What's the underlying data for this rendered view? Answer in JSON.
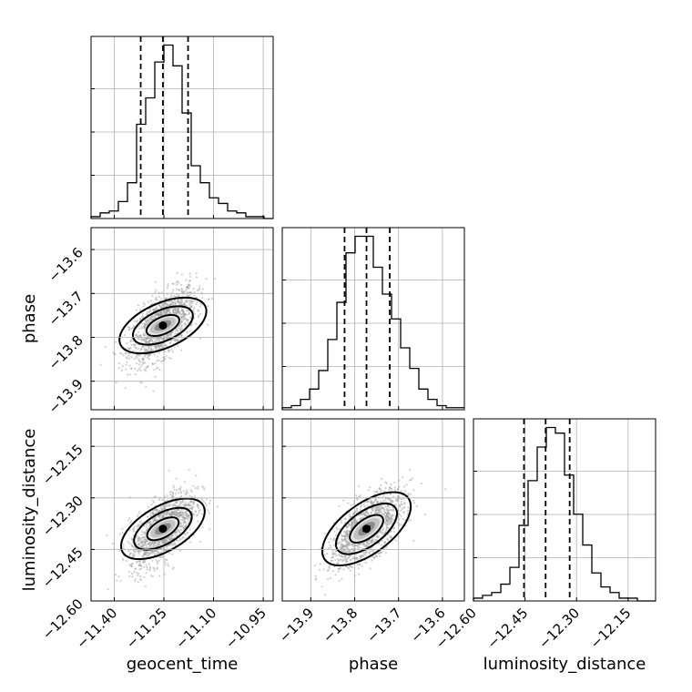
{
  "chart_data": {
    "type": "corner",
    "parameters": [
      {
        "name": "geocent_time",
        "range": [
          -11.47,
          -10.92
        ],
        "ticks": [
          -11.4,
          -11.25,
          -11.1,
          -10.95
        ],
        "tick_labels": [
          "−11.40",
          "−11.25",
          "−11.10",
          "−10.95"
        ],
        "quantiles": [
          -11.32,
          -11.253,
          -11.177
        ],
        "mean": -11.253,
        "sd": 0.05,
        "hist_values": [
          1,
          3,
          4,
          9,
          19,
          50,
          64,
          83,
          92,
          81,
          56,
          28,
          19,
          11,
          8,
          4,
          3,
          1,
          1,
          0
        ]
      },
      {
        "name": "phase",
        "range": [
          -13.965,
          -13.55
        ],
        "ticks": [
          -13.9,
          -13.8,
          -13.7,
          -13.6
        ],
        "tick_labels": [
          "−13.9",
          "−13.8",
          "−13.7",
          "−13.6"
        ],
        "quantiles": [
          -13.823,
          -13.773,
          -13.72
        ],
        "mean": -13.773,
        "sd": 0.042,
        "hist_values": [
          1,
          2,
          5,
          10,
          19,
          34,
          52,
          76,
          84,
          84,
          69,
          56,
          44,
          30,
          20,
          10,
          5,
          2,
          1,
          1
        ]
      },
      {
        "name": "luminosity_distance",
        "range": [
          -12.6,
          -12.07
        ],
        "ticks": [
          -12.6,
          -12.45,
          -12.3,
          -12.15
        ],
        "tick_labels": [
          "−12.60",
          "−12.45",
          "−12.30",
          "−12.15"
        ],
        "quantiles": [
          -12.453,
          -12.39,
          -12.32
        ],
        "mean": -12.39,
        "sd": 0.055,
        "hist_values": [
          1,
          2,
          3,
          6,
          12,
          27,
          43,
          55,
          62,
          60,
          45,
          31,
          20,
          10,
          5,
          3,
          1,
          1,
          0,
          0
        ]
      }
    ],
    "correlations": {
      "1,0": 0.6,
      "2,0": 0.6,
      "2,1": 0.65
    }
  }
}
